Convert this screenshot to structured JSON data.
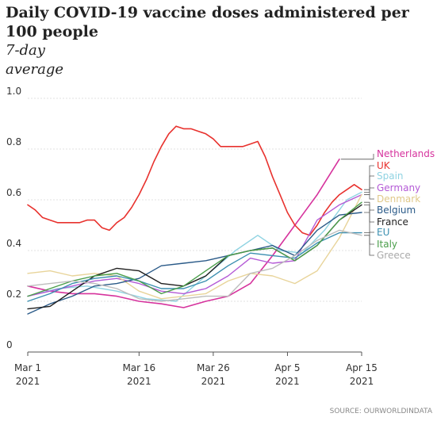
{
  "title": "Daily COVID-19 vaccine doses administered per 100 people",
  "subtitle": "7-day average",
  "source": "SOURCE: OURWORLDINDATA",
  "chart_data": {
    "type": "line",
    "title": "Daily COVID-19 vaccine doses administered per 100 people",
    "subtitle": "7-day average",
    "xlabel": "",
    "ylabel": "",
    "ylim": [
      0,
      1.0
    ],
    "yticks": [
      0,
      0.2,
      0.4,
      0.6,
      0.8,
      1.0
    ],
    "ytick_labels": [
      "0",
      "0.2",
      "0.4",
      "0.6",
      "0.8",
      "1.0"
    ],
    "xlim": [
      "2021-03-01",
      "2021-04-15"
    ],
    "xticks": [
      {
        "date": "2021-03-01",
        "line1": "Mar 1",
        "line2": "2021"
      },
      {
        "date": "2021-03-16",
        "line1": "Mar 16",
        "line2": "2021"
      },
      {
        "date": "2021-03-26",
        "line1": "Mar 26",
        "line2": "2021"
      },
      {
        "date": "2021-04-05",
        "line1": "Apr 5",
        "line2": "2021"
      },
      {
        "date": "2021-04-15",
        "line1": "Apr 15",
        "line2": "2021"
      }
    ],
    "grid": true,
    "legend": "right",
    "series": [
      {
        "name": "Netherlands",
        "color": "#d6339d",
        "label_color": "#d6339d",
        "x": [
          "2021-03-01",
          "2021-03-04",
          "2021-03-07",
          "2021-03-10",
          "2021-03-13",
          "2021-03-16",
          "2021-03-19",
          "2021-03-22",
          "2021-03-25",
          "2021-03-28",
          "2021-03-31",
          "2021-04-03",
          "2021-04-06",
          "2021-04-09",
          "2021-04-12"
        ],
        "y": [
          0.26,
          0.24,
          0.23,
          0.23,
          0.22,
          0.2,
          0.19,
          0.175,
          0.2,
          0.22,
          0.27,
          0.38,
          0.5,
          0.62,
          0.76
        ]
      },
      {
        "name": "UK",
        "color": "#e8322e",
        "label_color": "#e8322e",
        "x": [
          "2021-03-01",
          "2021-03-02",
          "2021-03-03",
          "2021-03-04",
          "2021-03-05",
          "2021-03-06",
          "2021-03-07",
          "2021-03-08",
          "2021-03-09",
          "2021-03-10",
          "2021-03-11",
          "2021-03-12",
          "2021-03-13",
          "2021-03-14",
          "2021-03-15",
          "2021-03-16",
          "2021-03-17",
          "2021-03-18",
          "2021-03-19",
          "2021-03-20",
          "2021-03-21",
          "2021-03-22",
          "2021-03-23",
          "2021-03-24",
          "2021-03-25",
          "2021-03-26",
          "2021-03-27",
          "2021-03-28",
          "2021-03-29",
          "2021-03-30",
          "2021-03-31",
          "2021-04-01",
          "2021-04-02",
          "2021-04-03",
          "2021-04-04",
          "2021-04-05",
          "2021-04-06",
          "2021-04-07",
          "2021-04-08",
          "2021-04-09",
          "2021-04-10",
          "2021-04-11",
          "2021-04-12",
          "2021-04-13",
          "2021-04-14",
          "2021-04-15"
        ],
        "y": [
          0.58,
          0.56,
          0.53,
          0.52,
          0.51,
          0.51,
          0.51,
          0.51,
          0.52,
          0.52,
          0.49,
          0.48,
          0.51,
          0.53,
          0.57,
          0.62,
          0.68,
          0.75,
          0.81,
          0.86,
          0.89,
          0.88,
          0.88,
          0.87,
          0.86,
          0.84,
          0.81,
          0.81,
          0.81,
          0.81,
          0.82,
          0.83,
          0.77,
          0.69,
          0.62,
          0.55,
          0.5,
          0.47,
          0.46,
          0.5,
          0.55,
          0.59,
          0.62,
          0.64,
          0.66,
          0.64
        ]
      },
      {
        "name": "Spain",
        "color": "#8fd3e2",
        "label_color": "#8fd3e2",
        "x": [
          "2021-03-01",
          "2021-03-05",
          "2021-03-09",
          "2021-03-13",
          "2021-03-17",
          "2021-03-21",
          "2021-03-25",
          "2021-03-29",
          "2021-04-01",
          "2021-04-04",
          "2021-04-07",
          "2021-04-10",
          "2021-04-13",
          "2021-04-15"
        ],
        "y": [
          0.22,
          0.25,
          0.26,
          0.24,
          0.21,
          0.2,
          0.3,
          0.4,
          0.46,
          0.4,
          0.39,
          0.48,
          0.6,
          0.63
        ]
      },
      {
        "name": "Germany",
        "color": "#b45ad6",
        "label_color": "#b45ad6",
        "x": [
          "2021-03-01",
          "2021-03-04",
          "2021-03-07",
          "2021-03-10",
          "2021-03-13",
          "2021-03-16",
          "2021-03-19",
          "2021-03-22",
          "2021-03-25",
          "2021-03-28",
          "2021-03-31",
          "2021-04-03",
          "2021-04-06",
          "2021-04-09",
          "2021-04-12",
          "2021-04-15"
        ],
        "y": [
          0.22,
          0.24,
          0.26,
          0.28,
          0.29,
          0.27,
          0.24,
          0.23,
          0.25,
          0.3,
          0.37,
          0.35,
          0.36,
          0.52,
          0.58,
          0.62
        ]
      },
      {
        "name": "Denmark",
        "color": "#e8d49a",
        "label_color": "#e0c98a",
        "x": [
          "2021-03-01",
          "2021-03-04",
          "2021-03-07",
          "2021-03-10",
          "2021-03-13",
          "2021-03-16",
          "2021-03-19",
          "2021-03-22",
          "2021-03-25",
          "2021-03-28",
          "2021-03-31",
          "2021-04-03",
          "2021-04-06",
          "2021-04-09",
          "2021-04-12",
          "2021-04-15"
        ],
        "y": [
          0.31,
          0.32,
          0.3,
          0.31,
          0.3,
          0.24,
          0.21,
          0.22,
          0.23,
          0.28,
          0.31,
          0.3,
          0.27,
          0.32,
          0.45,
          0.62
        ]
      },
      {
        "name": "Belgium",
        "color": "#2a5a88",
        "label_color": "#2a5a88",
        "x": [
          "2021-03-01",
          "2021-03-04",
          "2021-03-07",
          "2021-03-10",
          "2021-03-13",
          "2021-03-16",
          "2021-03-19",
          "2021-03-22",
          "2021-03-25",
          "2021-03-28",
          "2021-03-31",
          "2021-04-03",
          "2021-04-06",
          "2021-04-09",
          "2021-04-12",
          "2021-04-15"
        ],
        "y": [
          0.15,
          0.19,
          0.22,
          0.26,
          0.27,
          0.29,
          0.34,
          0.35,
          0.36,
          0.38,
          0.4,
          0.42,
          0.38,
          0.48,
          0.54,
          0.55
        ]
      },
      {
        "name": "France",
        "color": "#1f1f1f",
        "label_color": "#1f1f1f",
        "x": [
          "2021-03-01",
          "2021-03-04",
          "2021-03-07",
          "2021-03-10",
          "2021-03-13",
          "2021-03-16",
          "2021-03-19",
          "2021-03-22",
          "2021-03-25",
          "2021-03-28",
          "2021-03-31",
          "2021-04-03",
          "2021-04-06",
          "2021-04-09",
          "2021-04-12",
          "2021-04-15"
        ],
        "y": [
          0.17,
          0.18,
          0.24,
          0.3,
          0.33,
          0.32,
          0.27,
          0.26,
          0.3,
          0.38,
          0.4,
          0.41,
          0.36,
          0.42,
          0.52,
          0.58
        ]
      },
      {
        "name": "EU",
        "color": "#3b8fb0",
        "label_color": "#3b8fb0",
        "x": [
          "2021-03-01",
          "2021-03-04",
          "2021-03-07",
          "2021-03-10",
          "2021-03-13",
          "2021-03-16",
          "2021-03-19",
          "2021-03-22",
          "2021-03-25",
          "2021-03-28",
          "2021-03-31",
          "2021-04-03",
          "2021-04-06",
          "2021-04-09",
          "2021-04-12",
          "2021-04-15"
        ],
        "y": [
          0.2,
          0.23,
          0.27,
          0.29,
          0.3,
          0.28,
          0.25,
          0.25,
          0.28,
          0.34,
          0.39,
          0.38,
          0.37,
          0.43,
          0.47,
          0.47
        ]
      },
      {
        "name": "Italy",
        "color": "#4a9e4a",
        "label_color": "#4a9e4a",
        "x": [
          "2021-03-01",
          "2021-03-04",
          "2021-03-07",
          "2021-03-10",
          "2021-03-13",
          "2021-03-16",
          "2021-03-19",
          "2021-03-22",
          "2021-03-25",
          "2021-03-28",
          "2021-03-31",
          "2021-04-03",
          "2021-04-06",
          "2021-04-09",
          "2021-04-12",
          "2021-04-15"
        ],
        "y": [
          0.22,
          0.25,
          0.28,
          0.3,
          0.31,
          0.28,
          0.23,
          0.26,
          0.32,
          0.38,
          0.4,
          0.41,
          0.36,
          0.42,
          0.52,
          0.59
        ]
      },
      {
        "name": "Greece",
        "color": "#bdbdbd",
        "label_color": "#aaaaaa",
        "x": [
          "2021-03-01",
          "2021-03-04",
          "2021-03-07",
          "2021-03-10",
          "2021-03-13",
          "2021-03-16",
          "2021-03-19",
          "2021-03-22",
          "2021-03-25",
          "2021-03-28",
          "2021-03-31",
          "2021-04-03",
          "2021-04-06",
          "2021-04-09",
          "2021-04-12",
          "2021-04-15"
        ],
        "y": [
          0.26,
          0.27,
          0.28,
          0.27,
          0.25,
          0.21,
          0.2,
          0.21,
          0.22,
          0.22,
          0.31,
          0.33,
          0.38,
          0.44,
          0.48,
          0.46
        ]
      }
    ]
  }
}
